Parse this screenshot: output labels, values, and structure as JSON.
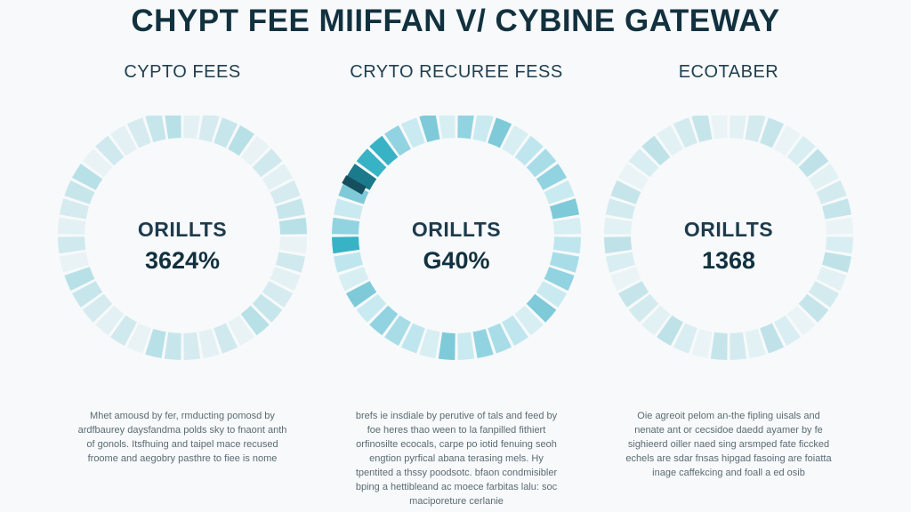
{
  "header": {
    "title": "CHYPT FEE MIIFFAN V/ CYBINE GATEWAY"
  },
  "panels": [
    {
      "heading": "CYPTO FEES",
      "metric_label": "ORILLTS",
      "metric_value": "3624%",
      "highlight_segments": [],
      "blurb": "Mhet amousd by fer, rmducting pomosd by ardfbaurey daysfandma polds sky to fnaont anth of gonols. Itsfhuing and taipel mace recused froome and aegobry pasthre to fiee is nome"
    },
    {
      "heading": "CRYTO RECUREE FESS",
      "metric_label": "ORILLTS",
      "metric_value": "G40%",
      "highlight_segments": [
        29,
        33,
        34,
        35
      ],
      "blurb": "brefs ie insdiale by perutive of tals and feed by foe heres thao ween to la fanpilled fithiert orfinosilte ecocals, carpe po iotid fenuing seoh engtion pyrfical abana terasing mels. Hy tpentited a thssy poodsotc. bfaon condmisibler bping a hettibleand ac moece farbitas lalu: soc maciporeture cerlanie"
    },
    {
      "heading": "ECOTABER",
      "metric_label": "ORILLTS",
      "metric_value": "1368",
      "highlight_segments": [],
      "blurb": "Oie agreoit pelom an-the fipling uisals and nenate ant or cecsidoe daedd ayamer by fe sighieerd oiller naed sing arsmped fate ficcked echels are sdar fnsas hipgad fasoing are foiatta inage caffekcing and foall a ed osib"
    }
  ]
}
